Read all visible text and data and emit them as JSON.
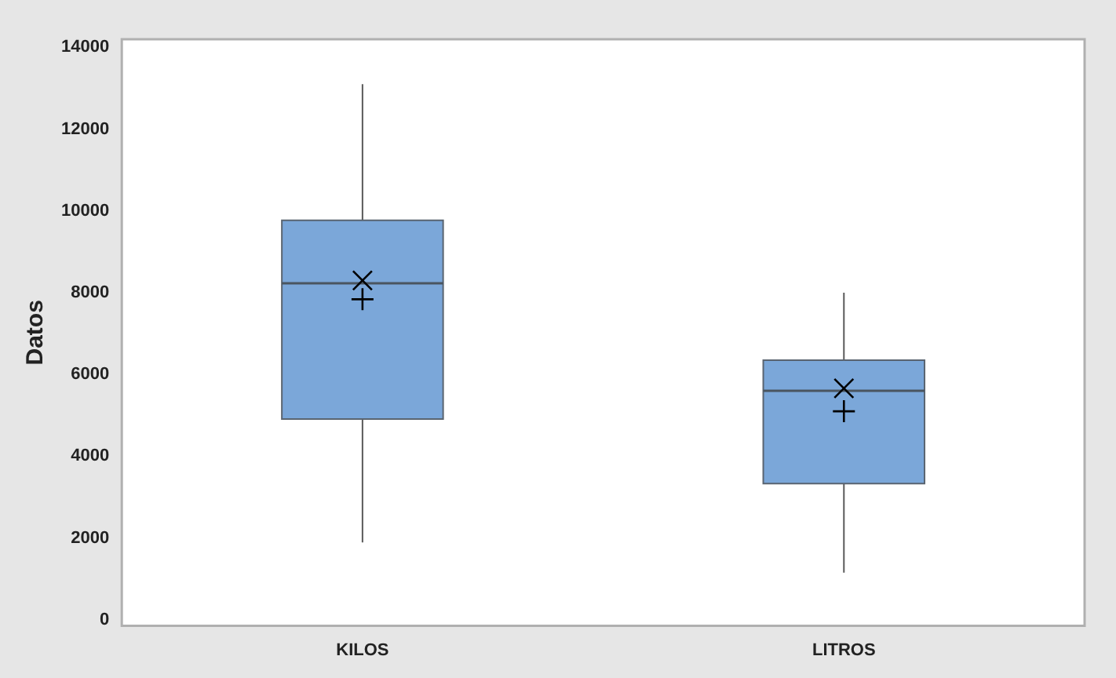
{
  "chart_data": {
    "type": "box",
    "ylabel": "Datos",
    "categories": [
      "KILOS",
      "LITROS"
    ],
    "ylim": [
      -150,
      14200
    ],
    "yticks": [
      0,
      2000,
      4000,
      6000,
      8000,
      10000,
      12000,
      14000
    ],
    "series": [
      {
        "color": "#7ba7d9",
        "boxes": [
          {
            "low": 1890,
            "q1": 4910,
            "median": 8230,
            "q3": 9770,
            "high": 13100,
            "mean": 8300
          },
          {
            "low": 1150,
            "q1": 3330,
            "median": 5600,
            "q3": 6350,
            "high": 8000,
            "mean": 5660
          }
        ]
      },
      {
        "type": "scatter",
        "x": [
          "KILOS",
          "LITROS"
        ],
        "values": [
          7840,
          5100
        ],
        "color": "#000000",
        "marker": "cross"
      }
    ]
  }
}
